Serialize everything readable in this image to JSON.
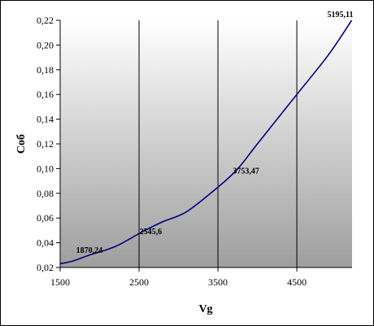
{
  "chart_data": {
    "type": "line",
    "title": "",
    "xlabel": "Vg",
    "ylabel": "Соб",
    "xlim": [
      1500,
      5200
    ],
    "ylim": [
      0.02,
      0.22
    ],
    "x_ticks": [
      "1500",
      "2500",
      "3500",
      "4500"
    ],
    "y_ticks": [
      "0,02",
      "0,04",
      "0,06",
      "0,08",
      "0,10",
      "0,12",
      "0,14",
      "0,16",
      "0,18",
      "0,20",
      "0,22"
    ],
    "grid": "vertical",
    "legend": "none",
    "background": "gradient light-gray to gray",
    "line_color": "#000080",
    "series": [
      {
        "x": [
          1500,
          1650,
          1870,
          2200,
          2545,
          2800,
          3100,
          3500,
          3753,
          4000,
          4500,
          4900,
          5195
        ],
        "values": [
          0.023,
          0.025,
          0.03,
          0.037,
          0.049,
          0.057,
          0.065,
          0.085,
          0.1,
          0.12,
          0.16,
          0.192,
          0.22
        ]
      }
    ],
    "data_labels": [
      {
        "text": "1870,24",
        "x": 1870,
        "y": 0.03
      },
      {
        "text": "2545,6",
        "x": 2545,
        "y": 0.049
      },
      {
        "text": "3753,47",
        "x": 3753,
        "y": 0.1
      },
      {
        "text": "5195,11",
        "x": 5195,
        "y": 0.22
      }
    ]
  }
}
